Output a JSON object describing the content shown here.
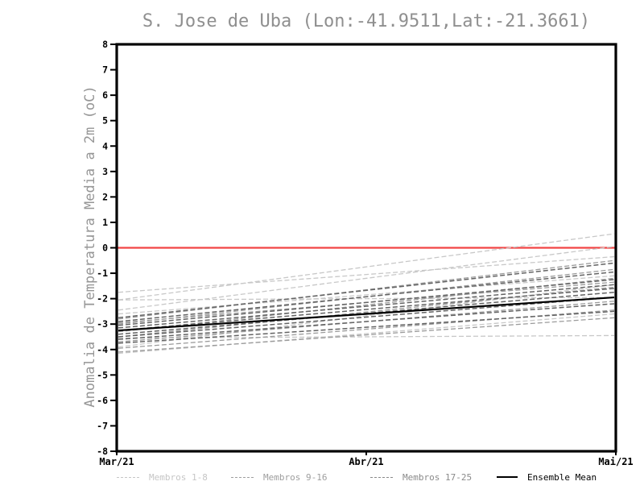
{
  "title": "S. Jose de Uba (Lon:-41.9511,Lat:-21.3661)",
  "chart_data": {
    "type": "line",
    "title": "S. Jose de Uba (Lon:-41.9511,Lat:-21.3661)",
    "xlabel": "",
    "ylabel": "Anomalia de Temperatura Media a 2m (oC)",
    "ylim": [
      -8,
      8
    ],
    "ytick_step": 1,
    "yticks": [
      "8",
      "7",
      "6",
      "5",
      "4",
      "3",
      "2",
      "1",
      "0",
      "-1",
      "-2",
      "-3",
      "-4",
      "-5",
      "-6",
      "-7",
      "-8"
    ],
    "xticks": [
      "Mar/21",
      "Abr/21",
      "Mai/21"
    ],
    "x_endpoints": [
      "Mar/21",
      "Mai/21"
    ],
    "grid": false,
    "legend_position": "bottom",
    "zero_line": {
      "value": 0,
      "color": "#f24545"
    },
    "axis_color": "#000000",
    "series": [
      {
        "name": "Membros 1-8",
        "color": "#c8c8c8",
        "style": "dashed",
        "members": [
          [
            -2.05,
            0.55
          ],
          [
            -2.45,
            0.05
          ],
          [
            -1.75,
            -0.35
          ],
          [
            -2.05,
            -1.95
          ],
          [
            -3.55,
            -3.45
          ],
          [
            -4.15,
            -2.6
          ],
          [
            -3.9,
            -1.45
          ],
          [
            -2.6,
            -1.1
          ]
        ]
      },
      {
        "name": "Membros 9-16",
        "color": "#9b9b9b",
        "style": "dashed",
        "members": [
          [
            -2.8,
            -0.5
          ],
          [
            -3.0,
            -0.85
          ],
          [
            -3.3,
            -1.2
          ],
          [
            -3.5,
            -1.55
          ],
          [
            -3.7,
            -2.1
          ],
          [
            -3.95,
            -2.45
          ],
          [
            -4.1,
            -2.75
          ],
          [
            -2.95,
            -1.35
          ]
        ]
      },
      {
        "name": "Membros 17-25",
        "color": "#646464",
        "style": "dashed",
        "members": [
          [
            -2.75,
            -0.6
          ],
          [
            -2.9,
            -0.95
          ],
          [
            -3.05,
            -1.25
          ],
          [
            -3.15,
            -1.45
          ],
          [
            -3.25,
            -1.6
          ],
          [
            -3.4,
            -1.75
          ],
          [
            -3.5,
            -1.95
          ],
          [
            -3.6,
            -2.2
          ],
          [
            -3.75,
            -2.5
          ]
        ]
      },
      {
        "name": "Ensemble Mean",
        "color": "#000000",
        "style": "solid",
        "members": [
          [
            -3.25,
            -1.95
          ]
        ]
      }
    ]
  }
}
